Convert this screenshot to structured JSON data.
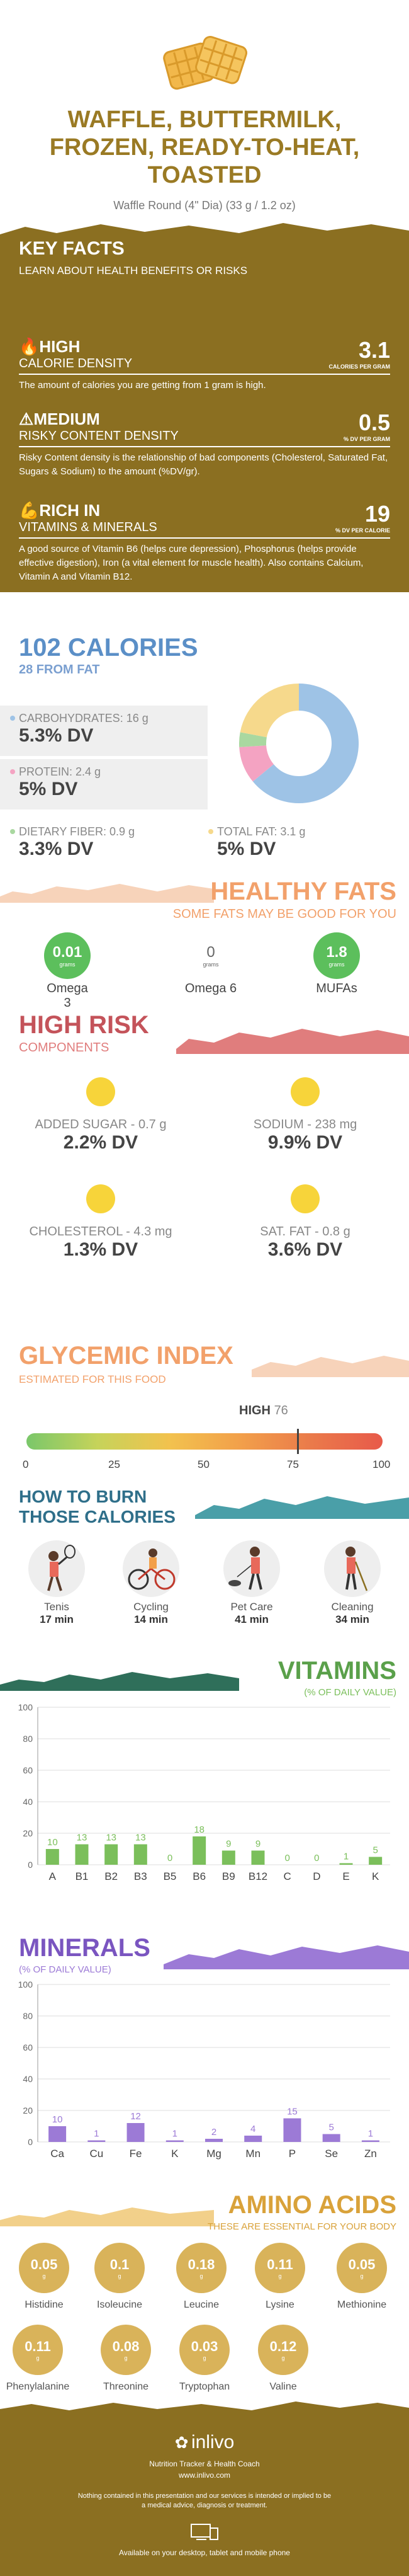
{
  "header": {
    "title": "WAFFLE, BUTTERMILK, FROZEN, READY-TO-HEAT, TOASTED",
    "serving": "Waffle Round (4\" Dia) (33 g / 1.2 oz)"
  },
  "key_facts": {
    "title": "KEY FACTS",
    "subtitle": "LEARN ABOUT HEALTH BENEFITS OR RISKS",
    "rows": [
      {
        "level": "HIGH",
        "category": "CALORIE DENSITY",
        "value": "3.1",
        "unit": "CALORIES PER GRAM",
        "desc": "The amount of calories you are getting from 1 gram is high."
      },
      {
        "level": "MEDIUM",
        "category": "RISKY CONTENT DENSITY",
        "value": "0.5",
        "unit": "% DV PER GRAM",
        "desc": "Risky Content density is the relationship of bad components (Cholesterol, Saturated Fat, Sugars & Sodium) to the amount (%DV/gr)."
      },
      {
        "level": "RICH  IN",
        "category": "VITAMINS & MINERALS",
        "value": "19",
        "unit": "% DV PER CALORIE",
        "desc": "A good source of Vitamin B6 (helps cure depression), Phosphorus (helps provide effective digestion), Iron (a vital element for muscle health). Also contains Calcium, Vitamin A and Vitamin B12."
      }
    ]
  },
  "calories": {
    "title": "102 CALORIES",
    "from_fat": "28 FROM FAT",
    "carbs": {
      "label": "CARBOHYDRATES: 16 g",
      "dv": "5.3% DV"
    },
    "protein": {
      "label": "PROTEIN: 2.4 g",
      "dv": "5% DV"
    },
    "fiber": {
      "label": "DIETARY FIBER: 0.9 g",
      "dv": "3.3% DV"
    },
    "fat": {
      "label": "TOTAL FAT: 3.1 g",
      "dv": "5% DV"
    },
    "donut": [
      {
        "name": "carbs",
        "value": 64,
        "color": "#9ec3e6"
      },
      {
        "name": "protein",
        "value": 10,
        "color": "#f4a3c2"
      },
      {
        "name": "fiber",
        "value": 4,
        "color": "#a9d8a0"
      },
      {
        "name": "fat",
        "value": 22,
        "color": "#f6d98c"
      }
    ]
  },
  "healthy_fats": {
    "title": "HEALTHY FATS",
    "subtitle": "SOME FATS MAY BE GOOD FOR YOU",
    "items": [
      {
        "value": "0.01",
        "unit": "grams",
        "label": "Omega 3",
        "color": "#5cbf5c"
      },
      {
        "value": "0",
        "unit": "grams",
        "label": "Omega 6",
        "color": "#ffffff"
      },
      {
        "value": "1.8",
        "unit": "grams",
        "label": "MUFAs",
        "color": "#5cbf5c"
      }
    ]
  },
  "high_risk": {
    "title": "HIGH RISK",
    "subtitle": "COMPONENTS",
    "items": [
      {
        "label": "ADDED SUGAR - 0.7 g",
        "dv": "2.2% DV"
      },
      {
        "label": "SODIUM - 238 mg",
        "dv": "9.9% DV"
      },
      {
        "label": "CHOLESTEROL - 4.3 mg",
        "dv": "1.3% DV"
      },
      {
        "label": "SAT. FAT - 0.8 g",
        "dv": "3.6% DV"
      }
    ]
  },
  "glycemic": {
    "title": "GLYCEMIC INDEX",
    "subtitle": "ESTIMATED FOR THIS FOOD",
    "level": "HIGH",
    "value": 76,
    "ticks": [
      "0",
      "25",
      "50",
      "75",
      "100"
    ]
  },
  "burn": {
    "title1": "HOW TO BURN",
    "title2": "THOSE CALORIES",
    "items": [
      {
        "label": "Tenis",
        "time": "17 min",
        "icon": "tennis-icon"
      },
      {
        "label": "Cycling",
        "time": "14 min",
        "icon": "cycling-icon"
      },
      {
        "label": "Pet Care",
        "time": "41 min",
        "icon": "pet-care-icon"
      },
      {
        "label": "Cleaning",
        "time": "34 min",
        "icon": "cleaning-icon"
      }
    ]
  },
  "vitamins": {
    "title": "VITAMINS",
    "subtitle": "(% OF DAILY VALUE)",
    "color": "#7bbf5b",
    "chart_data": {
      "type": "bar",
      "categories": [
        "A",
        "B1",
        "B2",
        "B3",
        "B5",
        "B6",
        "B9",
        "B12",
        "C",
        "D",
        "E",
        "K"
      ],
      "values": [
        10,
        13,
        13,
        13,
        0,
        18,
        9,
        9,
        0,
        0,
        1,
        5
      ],
      "labels": [
        "10",
        "13",
        "13",
        "13",
        "0",
        "18",
        "9",
        "9",
        "0",
        "0",
        "1",
        "5"
      ],
      "ylim": [
        0,
        100
      ],
      "yticks": [
        "0",
        "20",
        "40",
        "60",
        "80",
        "100"
      ]
    }
  },
  "minerals": {
    "title": "MINERALS",
    "subtitle": "(% OF DAILY VALUE)",
    "color": "#9c7ad6",
    "chart_data": {
      "type": "bar",
      "categories": [
        "Ca",
        "Cu",
        "Fe",
        "K",
        "Mg",
        "Mn",
        "P",
        "Se",
        "Zn"
      ],
      "values": [
        10,
        1,
        12,
        1,
        2,
        4,
        15,
        5,
        1
      ],
      "labels": [
        "10",
        "1",
        "12",
        "1",
        "2",
        "4",
        "15",
        "5",
        "1"
      ],
      "ylim": [
        0,
        100
      ],
      "yticks": [
        "0",
        "20",
        "40",
        "60",
        "80",
        "100"
      ]
    }
  },
  "amino": {
    "title": "AMINO ACIDS",
    "subtitle": "THESE ARE ESSENTIAL FOR YOUR BODY",
    "unit": "g",
    "row1": [
      {
        "value": "0.05",
        "label": "Histidine"
      },
      {
        "value": "0.1",
        "label": "Isoleucine"
      },
      {
        "value": "0.18",
        "label": "Leucine"
      },
      {
        "value": "0.11",
        "label": "Lysine"
      },
      {
        "value": "0.05",
        "label": "Methionine"
      }
    ],
    "row2": [
      {
        "value": "0.11",
        "label": "Phenylalanine"
      },
      {
        "value": "0.08",
        "label": "Threonine"
      },
      {
        "value": "0.03",
        "label": "Tryptophan"
      },
      {
        "value": "0.12",
        "label": "Valine"
      }
    ]
  },
  "footer": {
    "brand": "inlivo",
    "tagline": "Nutrition Tracker & Health Coach",
    "url": "www.inlivo.com",
    "disclaimer": "Nothing contained in this presentation and our services is intended or implied to be a medical advice, diagnosis or treatment.",
    "available": "Available on your desktop, tablet and mobile phone"
  }
}
